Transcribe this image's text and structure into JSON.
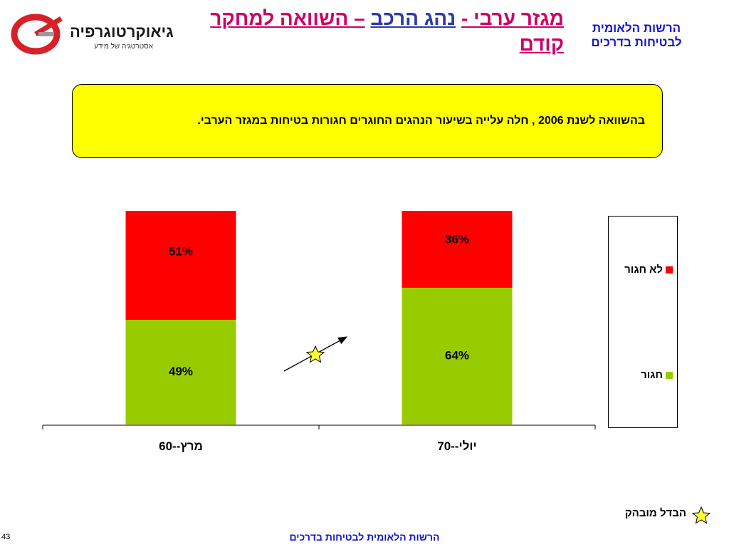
{
  "header": {
    "title_part1": "מגזר ערבי -",
    "title_part2": "נהג הרכב",
    "title_part3": "– השוואה למחקר קודם",
    "org_line1": "הרשות הלאומית",
    "org_line2": "לבטיחות בדרכים"
  },
  "logo": {
    "brand": "גיאוקרטוגרפיה",
    "tagline": "אסטרטגיה של מידע"
  },
  "callout": {
    "text": "בהשוואה לשנת 2006 , חלה עלייה בשיעור הנהגים החוגרים חגורות בטיחות במגזר הערבי."
  },
  "chart_data": {
    "type": "bar",
    "stacked": true,
    "categories": [
      "מרץ--60",
      "יולי--70"
    ],
    "series": [
      {
        "name": "חגור",
        "values": [
          49,
          64
        ],
        "labels": [
          "49%",
          "64%"
        ],
        "color": "#99cc00"
      },
      {
        "name": "לא חגור",
        "values": [
          51,
          36
        ],
        "labels": [
          "51%",
          "36%"
        ],
        "color": "#ff0000"
      }
    ],
    "ylim": [
      0,
      100
    ],
    "grid": false,
    "legend_placement": "right"
  },
  "legend": {
    "item_not_belted": "לא חגור",
    "item_belted": "חגור"
  },
  "key": {
    "significant_label": "הבדל מובהק"
  },
  "footer": {
    "org": "הרשות הלאומית לבטיחות בדרכים",
    "page_number": "43"
  },
  "colors": {
    "belted": "#99cc00",
    "not_belted": "#ff0000",
    "callout_bg": "#ffff00",
    "title_magenta": "#cc0066",
    "title_blue": "#2e3aa8",
    "org_blue": "#1515d0",
    "star": "#ffff33"
  }
}
